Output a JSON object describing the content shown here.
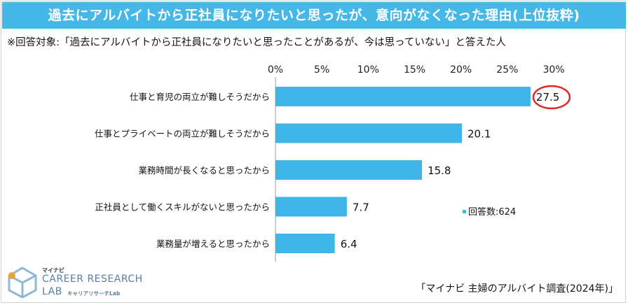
{
  "header": {
    "title": "過去にアルバイトから正社員になりたいと思ったが、意向がなくなった理由(上位抜粋)",
    "subtitle": "※回答対象:「過去にアルバイトから正社員になりたいと思ったことがあるが、今は思っていない」と答えた人"
  },
  "chart_data": {
    "type": "bar",
    "orientation": "horizontal",
    "categories": [
      "仕事と育児の両立が難しそうだから",
      "仕事とプライベートの両立が難しそうだから",
      "業務時間が長くなると思ったから",
      "正社員として働くスキルがないと思ったから",
      "業務量が増えると思ったから"
    ],
    "values": [
      27.5,
      20.1,
      15.8,
      7.7,
      6.4
    ],
    "value_labels": [
      "27.5",
      "20.1",
      "15.8",
      "7.7",
      "6.4"
    ],
    "x_ticks": [
      "0%",
      "5%",
      "10%",
      "15%",
      "20%",
      "25%",
      "30%"
    ],
    "xlim": [
      0,
      30
    ],
    "axis_position": "top",
    "grid": false,
    "bar_color": "#3fb5e8",
    "highlight_color": "#e02a2a",
    "highlight_index": 0,
    "legend": {
      "label": "回答数:624",
      "placement": "bottom-right"
    }
  },
  "branding": {
    "small": "マイナビ",
    "line1": "CAREER RESEARCH",
    "line2": "LAB",
    "kana": "キャリアリサーチLab"
  },
  "footer": {
    "source": "「マイナビ 主婦のアルバイト調査(2024年)」"
  }
}
